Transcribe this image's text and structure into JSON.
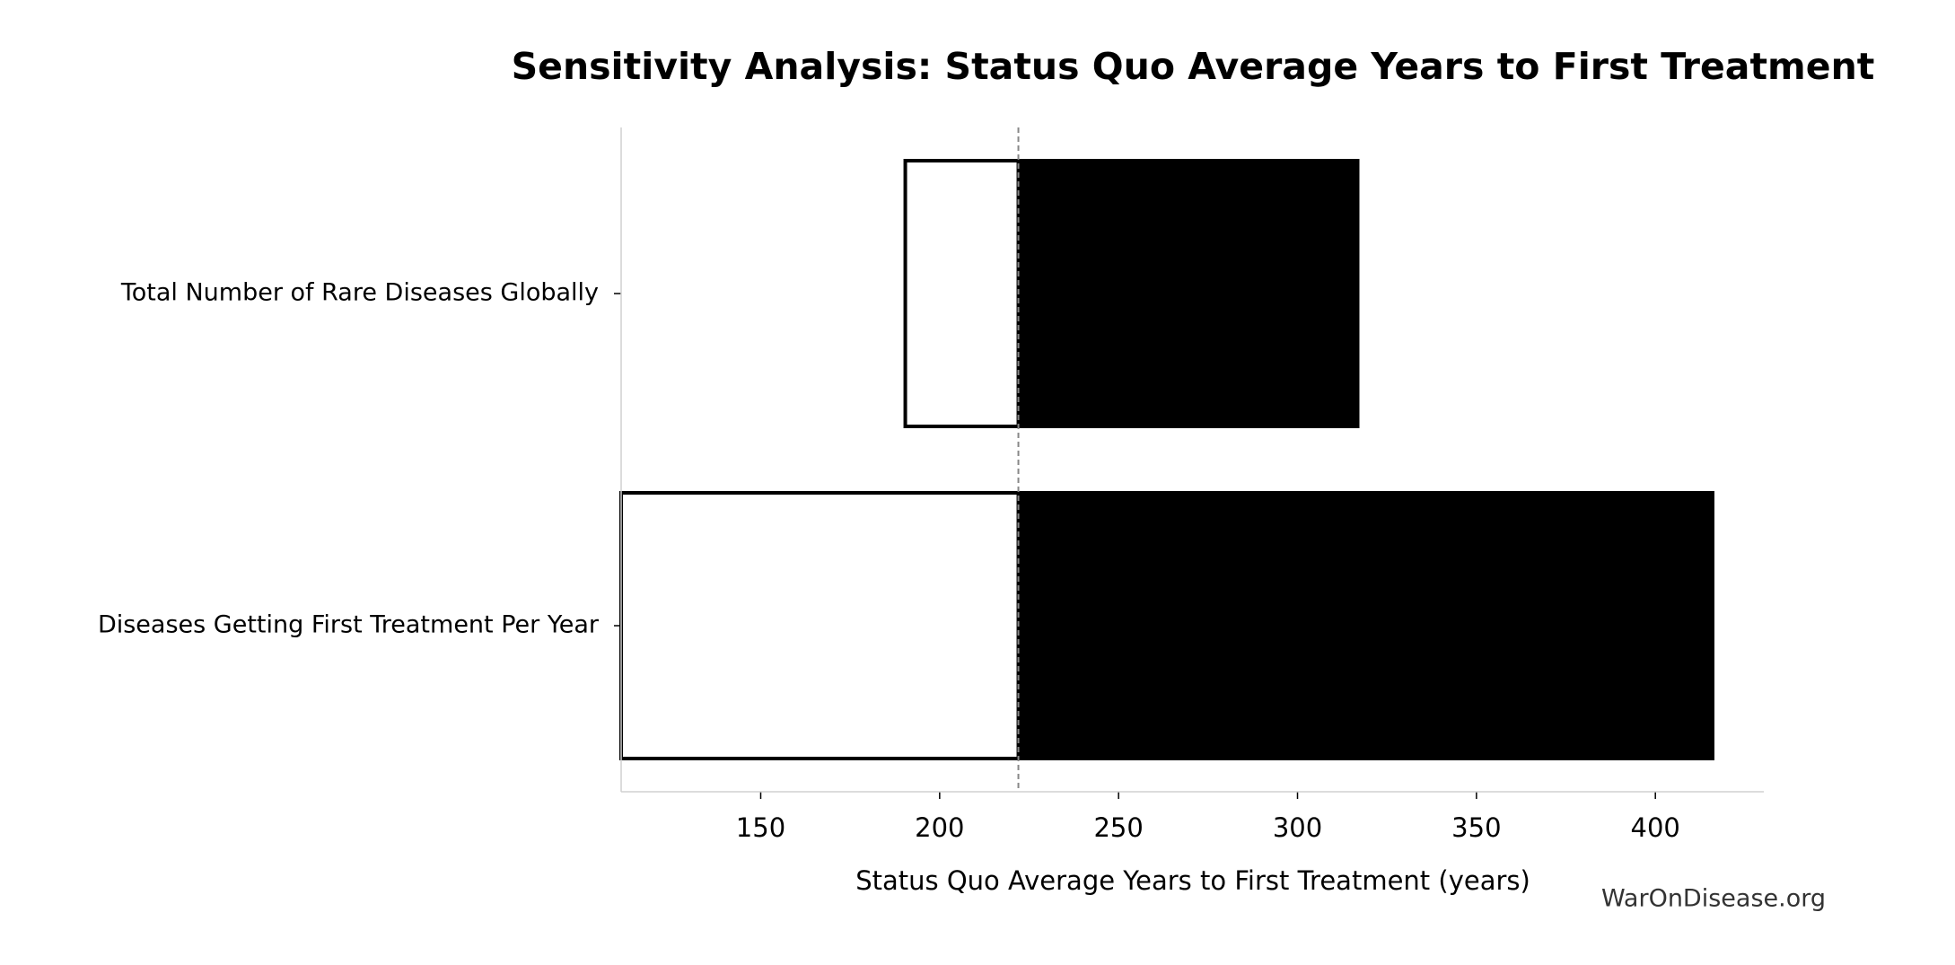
{
  "chart_data": {
    "type": "tornado",
    "title": "Sensitivity Analysis: Status Quo Average Years to First Treatment",
    "xlabel": "Status Quo Average Years to First Treatment (years)",
    "watermark": "WarOnDisease.org",
    "categories": [
      "Total Number of Rare Diseases Globally",
      "Diseases Getting First Treatment Per Year"
    ],
    "low_values": [
      190.4,
      111
    ],
    "high_values": [
      316.8,
      416
    ],
    "baseline": 222,
    "low_color": "#ffffff",
    "high_color": "#000000",
    "xlim": [
      111,
      430.3
    ],
    "xticks": [
      150,
      200,
      250,
      300,
      350,
      400
    ]
  }
}
